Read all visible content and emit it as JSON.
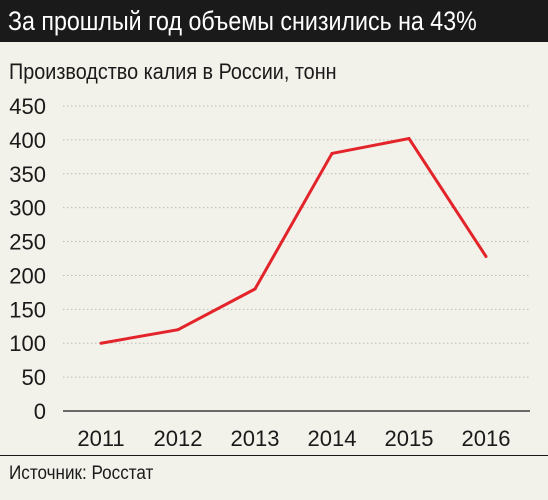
{
  "header": {
    "title": "За прошлый год объемы снизились на 43%",
    "subtitle": "Производство калия в России, тонн"
  },
  "footer": {
    "source": "Источник: Росстат"
  },
  "colors": {
    "background": "#f2f1ea",
    "title_bar": "#1a1a1a",
    "line": "#e3242b",
    "grid": "#bdbdb6",
    "text": "#1a1a1a"
  },
  "chart_data": {
    "type": "line",
    "title": "Производство калия в России, тонн",
    "xlabel": "",
    "ylabel": "",
    "x": [
      "2011",
      "2012",
      "2013",
      "2014",
      "2015",
      "2016"
    ],
    "series": [
      {
        "values": [
          100,
          120,
          180,
          380,
          402,
          228
        ],
        "color": "#e3242b"
      }
    ],
    "ylim": [
      0,
      450
    ],
    "yticks": [
      0,
      50,
      100,
      150,
      200,
      250,
      300,
      350,
      400,
      450
    ],
    "grid": "horizontal",
    "legend": "none"
  }
}
